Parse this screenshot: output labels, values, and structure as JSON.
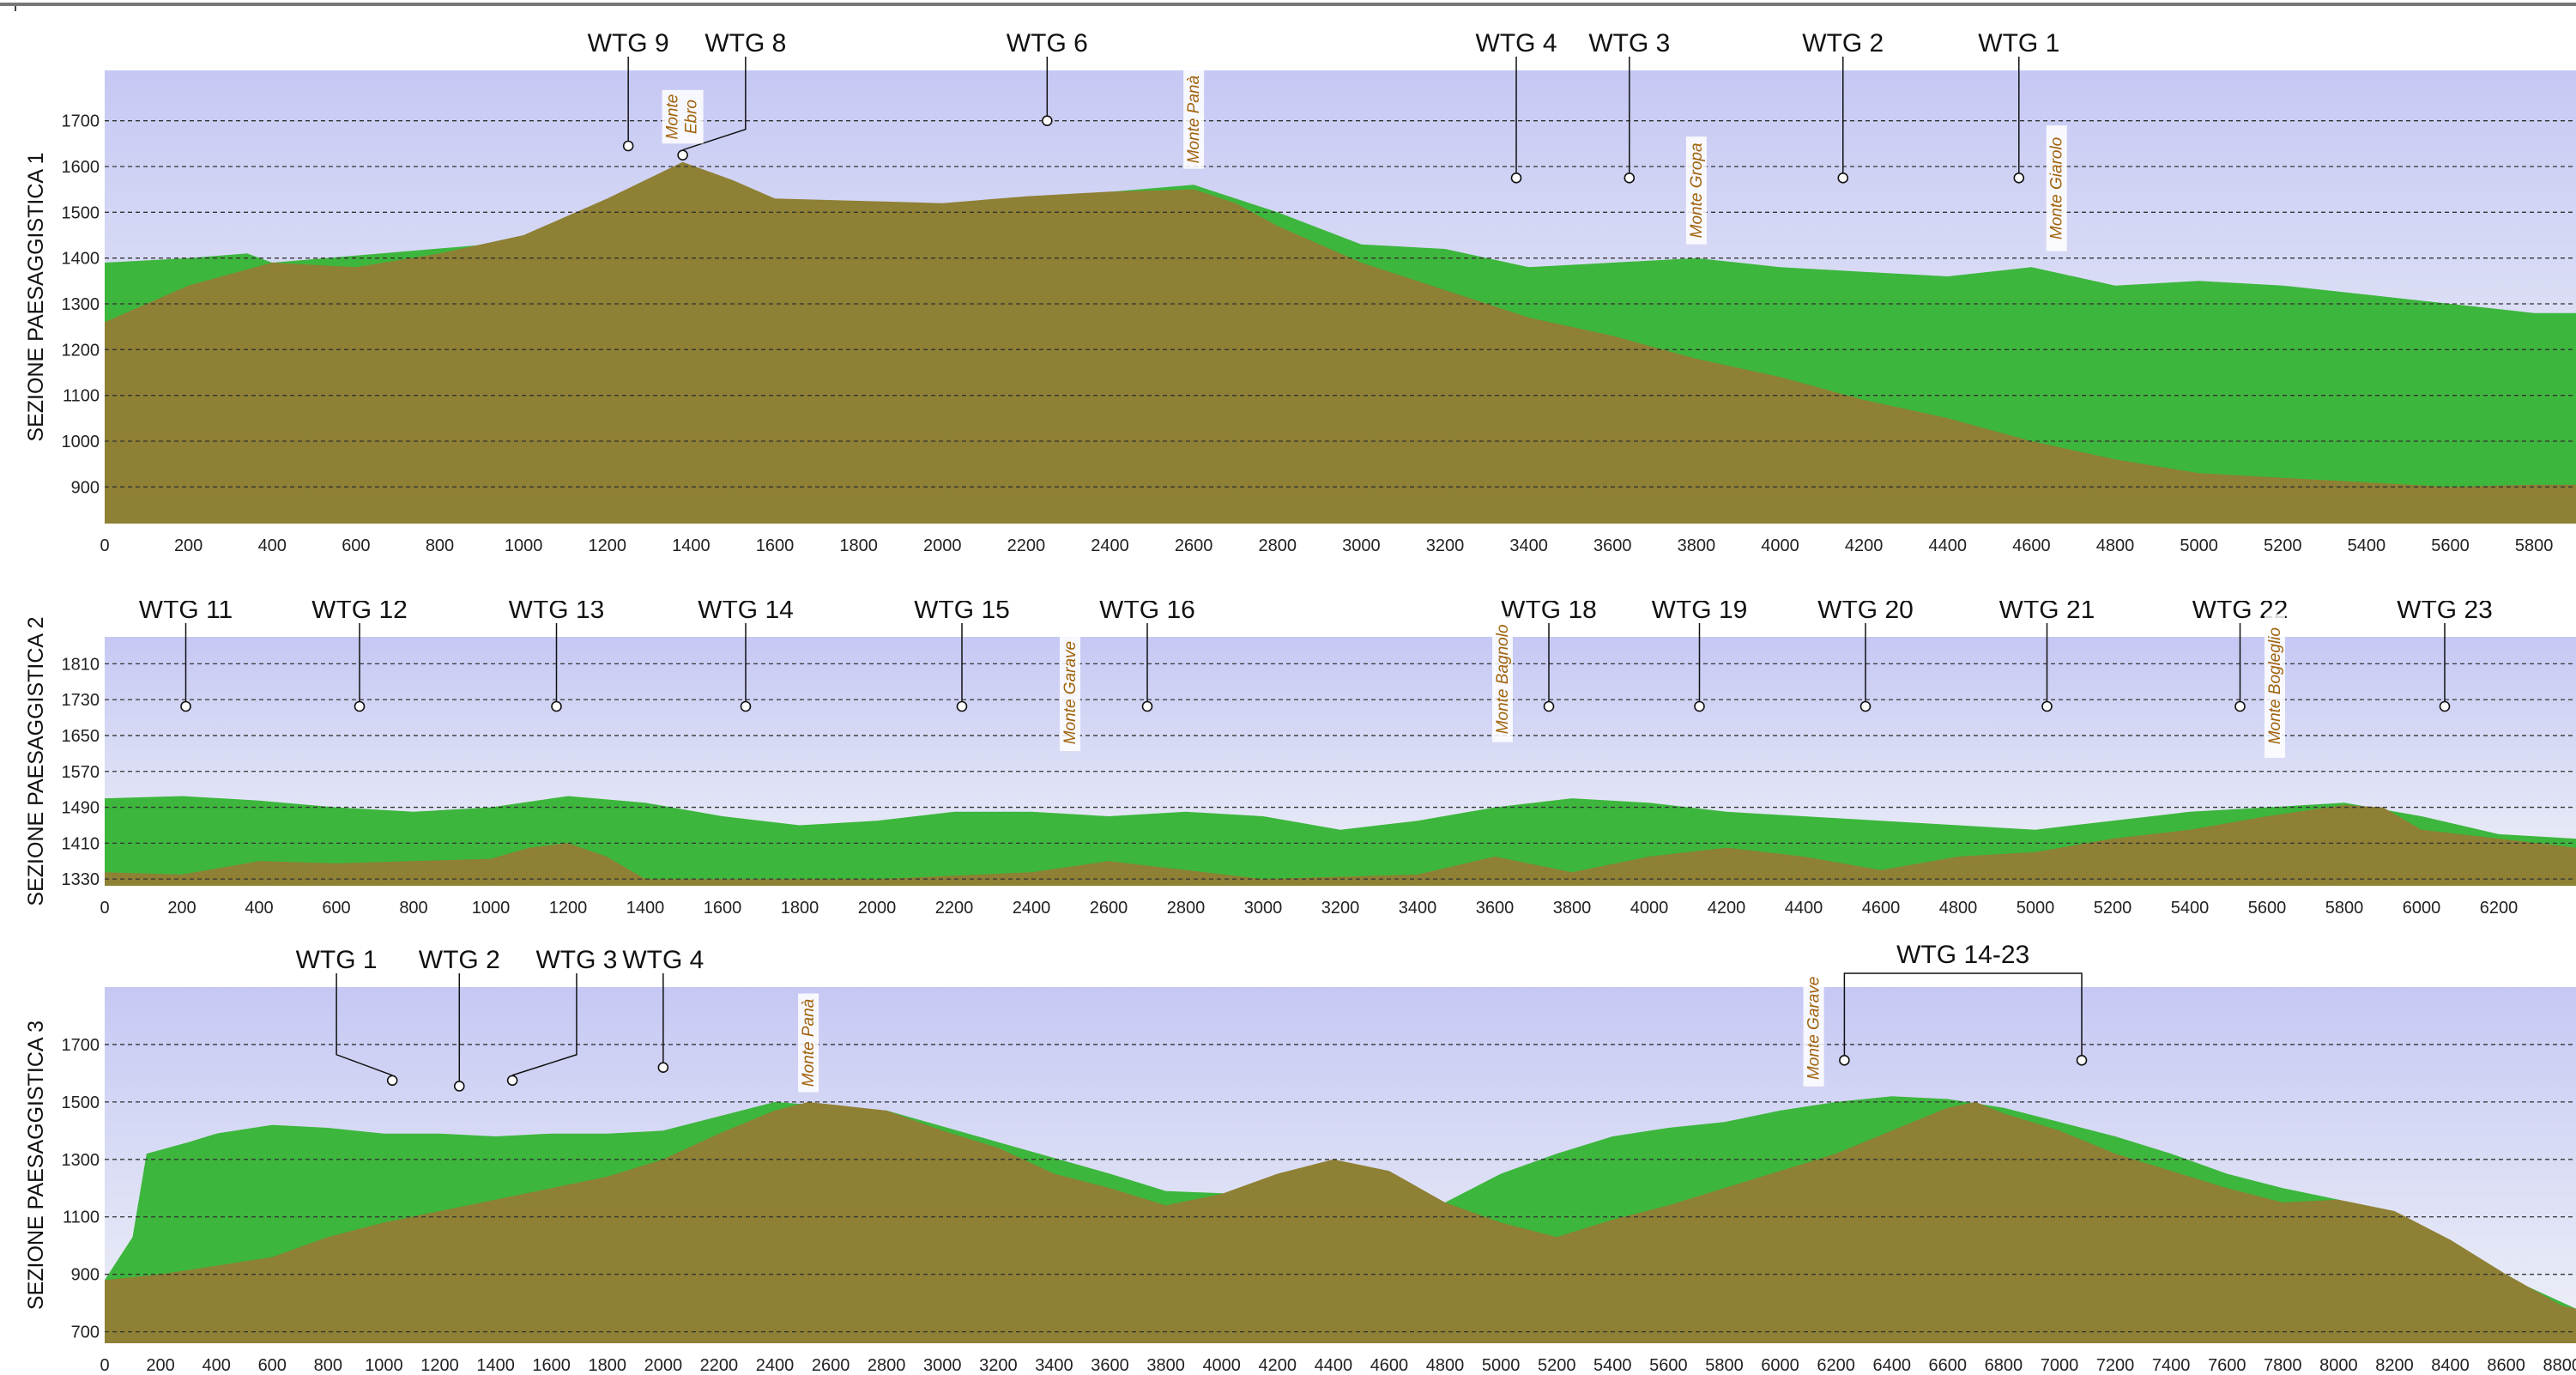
{
  "colors": {
    "ground": "#8e8034",
    "vegetation": "#3db63d",
    "peak_label": "#a0620a",
    "sky_top": "#c6c8f4",
    "sky_bottom": "#eef0f8"
  },
  "panels": [
    {
      "title": "SEZIONE PAESAGGISTICA 1",
      "x_range": [
        0,
        5900
      ],
      "y_range": [
        820,
        1810
      ],
      "x_ticks": [
        0,
        200,
        400,
        600,
        800,
        1000,
        1200,
        1400,
        1600,
        1800,
        2000,
        2200,
        2400,
        2600,
        2800,
        3000,
        3200,
        3400,
        3600,
        3800,
        4000,
        4200,
        4400,
        4600,
        4800,
        5000,
        5200,
        5400,
        5600,
        5800
      ],
      "y_ticks": [
        900,
        1000,
        1100,
        1200,
        1300,
        1400,
        1500,
        1600,
        1700
      ],
      "ground": [
        [
          0,
          1260
        ],
        [
          200,
          1340
        ],
        [
          400,
          1390
        ],
        [
          600,
          1380
        ],
        [
          800,
          1410
        ],
        [
          1000,
          1450
        ],
        [
          1200,
          1530
        ],
        [
          1380,
          1610
        ],
        [
          1500,
          1570
        ],
        [
          1600,
          1530
        ],
        [
          1800,
          1525
        ],
        [
          2000,
          1520
        ],
        [
          2200,
          1535
        ],
        [
          2400,
          1545
        ],
        [
          2600,
          1550
        ],
        [
          2700,
          1520
        ],
        [
          2800,
          1470
        ],
        [
          3000,
          1390
        ],
        [
          3200,
          1330
        ],
        [
          3400,
          1270
        ],
        [
          3600,
          1230
        ],
        [
          3800,
          1180
        ],
        [
          4000,
          1140
        ],
        [
          4200,
          1090
        ],
        [
          4400,
          1050
        ],
        [
          4600,
          1000
        ],
        [
          4800,
          960
        ],
        [
          5000,
          930
        ],
        [
          5200,
          920
        ],
        [
          5400,
          910
        ],
        [
          5600,
          900
        ],
        [
          5800,
          905
        ],
        [
          5900,
          905
        ]
      ],
      "vegetation": [
        [
          0,
          1390
        ],
        [
          200,
          1400
        ],
        [
          340,
          1410
        ],
        [
          400,
          1390
        ],
        [
          2600,
          1560
        ],
        [
          2800,
          1500
        ],
        [
          3000,
          1430
        ],
        [
          3200,
          1420
        ],
        [
          3400,
          1380
        ],
        [
          3600,
          1390
        ],
        [
          3800,
          1400
        ],
        [
          4000,
          1380
        ],
        [
          4200,
          1370
        ],
        [
          4400,
          1360
        ],
        [
          4600,
          1380
        ],
        [
          4800,
          1340
        ],
        [
          5000,
          1350
        ],
        [
          5200,
          1340
        ],
        [
          5400,
          1320
        ],
        [
          5600,
          1300
        ],
        [
          5800,
          1280
        ],
        [
          5900,
          1280
        ]
      ],
      "turbines": [
        {
          "label": "WTG 9",
          "x": 1250,
          "marker_y": 1645,
          "label_x": 1250
        },
        {
          "label": "WTG 8",
          "x": 1380,
          "marker_y": 1625,
          "label_x": 1530
        },
        {
          "label": "WTG 6",
          "x": 2250,
          "marker_y": 1700,
          "label_x": 2250
        },
        {
          "label": "WTG 4",
          "x": 3370,
          "marker_y": 1575,
          "label_x": 3370
        },
        {
          "label": "WTG 3",
          "x": 3640,
          "marker_y": 1575,
          "label_x": 3640
        },
        {
          "label": "WTG 2",
          "x": 4150,
          "marker_y": 1575,
          "label_x": 4150
        },
        {
          "label": "WTG 1",
          "x": 4570,
          "marker_y": 1575,
          "label_x": 4570
        }
      ],
      "peaks": [
        {
          "lines": [
            "Monte",
            "Ebro"
          ],
          "x": 1380,
          "y": 1635
        },
        {
          "lines": [
            "Monte Panà"
          ],
          "x": 2600,
          "y": 1580
        },
        {
          "lines": [
            "Monte Gropa"
          ],
          "x": 3800,
          "y": 1415
        },
        {
          "lines": [
            "Monte Giarolo"
          ],
          "x": 4660,
          "y": 1400
        }
      ]
    },
    {
      "title": "SEZIONE PAESAGGISTICA 2",
      "x_range": [
        0,
        6400
      ],
      "y_range": [
        1315,
        1870
      ],
      "x_ticks": [
        0,
        200,
        400,
        600,
        800,
        1000,
        1200,
        1400,
        1600,
        1800,
        2000,
        2200,
        2400,
        2600,
        2800,
        3000,
        3200,
        3400,
        3600,
        3800,
        4000,
        4200,
        4400,
        4600,
        4800,
        5000,
        5200,
        5400,
        5600,
        5800,
        6000,
        6200,
        6400
      ],
      "y_ticks": [
        1330,
        1410,
        1490,
        1570,
        1650,
        1730,
        1810
      ],
      "ground": [
        [
          0,
          1345
        ],
        [
          200,
          1340
        ],
        [
          400,
          1370
        ],
        [
          600,
          1365
        ],
        [
          800,
          1370
        ],
        [
          1000,
          1375
        ],
        [
          1100,
          1400
        ],
        [
          1200,
          1410
        ],
        [
          1300,
          1380
        ],
        [
          1400,
          1330
        ],
        [
          2000,
          1330
        ],
        [
          2400,
          1345
        ],
        [
          2600,
          1370
        ],
        [
          2800,
          1350
        ],
        [
          3000,
          1330
        ],
        [
          3400,
          1340
        ],
        [
          3600,
          1380
        ],
        [
          3800,
          1345
        ],
        [
          4000,
          1380
        ],
        [
          4200,
          1400
        ],
        [
          4400,
          1380
        ],
        [
          4600,
          1350
        ],
        [
          4800,
          1380
        ],
        [
          5000,
          1390
        ],
        [
          5200,
          1420
        ],
        [
          5400,
          1440
        ],
        [
          5600,
          1470
        ],
        [
          5800,
          1495
        ],
        [
          5900,
          1490
        ],
        [
          6000,
          1440
        ],
        [
          6200,
          1420
        ],
        [
          6400,
          1400
        ]
      ],
      "vegetation": [
        [
          0,
          1510
        ],
        [
          200,
          1515
        ],
        [
          400,
          1505
        ],
        [
          600,
          1490
        ],
        [
          800,
          1480
        ],
        [
          1000,
          1490
        ],
        [
          1200,
          1515
        ],
        [
          1400,
          1500
        ],
        [
          1600,
          1470
        ],
        [
          1800,
          1450
        ],
        [
          2000,
          1460
        ],
        [
          2200,
          1480
        ],
        [
          2400,
          1480
        ],
        [
          2600,
          1470
        ],
        [
          2800,
          1480
        ],
        [
          3000,
          1470
        ],
        [
          3200,
          1440
        ],
        [
          3400,
          1460
        ],
        [
          3600,
          1490
        ],
        [
          3800,
          1510
        ],
        [
          4000,
          1500
        ],
        [
          4200,
          1480
        ],
        [
          4400,
          1470
        ],
        [
          4600,
          1460
        ],
        [
          4800,
          1450
        ],
        [
          5000,
          1440
        ],
        [
          5200,
          1460
        ],
        [
          5400,
          1480
        ],
        [
          5600,
          1490
        ],
        [
          5800,
          1500
        ],
        [
          6000,
          1470
        ],
        [
          6200,
          1430
        ],
        [
          6400,
          1420
        ]
      ],
      "turbines": [
        {
          "label": "WTG 11",
          "x": 210,
          "marker_y": 1715,
          "label_x": 210
        },
        {
          "label": "WTG 12",
          "x": 660,
          "marker_y": 1715,
          "label_x": 660
        },
        {
          "label": "WTG 13",
          "x": 1170,
          "marker_y": 1715,
          "label_x": 1170
        },
        {
          "label": "WTG 14",
          "x": 1660,
          "marker_y": 1715,
          "label_x": 1660
        },
        {
          "label": "WTG 15",
          "x": 2220,
          "marker_y": 1715,
          "label_x": 2220
        },
        {
          "label": "WTG 16",
          "x": 2700,
          "marker_y": 1715,
          "label_x": 2700
        },
        {
          "label": "WTG 18",
          "x": 3740,
          "marker_y": 1715,
          "label_x": 3740
        },
        {
          "label": "WTG 19",
          "x": 4130,
          "marker_y": 1715,
          "label_x": 4130
        },
        {
          "label": "WTG 20",
          "x": 4560,
          "marker_y": 1715,
          "label_x": 4560
        },
        {
          "label": "WTG 21",
          "x": 5030,
          "marker_y": 1715,
          "label_x": 5030
        },
        {
          "label": "WTG 22",
          "x": 5530,
          "marker_y": 1715,
          "label_x": 5530
        },
        {
          "label": "WTG 23",
          "x": 6060,
          "marker_y": 1715,
          "label_x": 6060
        }
      ],
      "peaks": [
        {
          "lines": [
            "Monte Garave"
          ],
          "x": 2500,
          "y": 1600
        },
        {
          "lines": [
            "Monte Bagnolo"
          ],
          "x": 3620,
          "y": 1620
        },
        {
          "lines": [
            "Monte Bogleglio"
          ],
          "x": 5620,
          "y": 1585
        }
      ]
    },
    {
      "title": "SEZIONE PAESAGGISTICA 3",
      "x_range": [
        0,
        8850
      ],
      "y_range": [
        660,
        1900
      ],
      "x_ticks": [
        0,
        200,
        400,
        600,
        800,
        1000,
        1200,
        1400,
        1600,
        1800,
        2000,
        2200,
        2400,
        2600,
        2800,
        3000,
        3200,
        3400,
        3600,
        3800,
        4000,
        4200,
        4400,
        4600,
        4800,
        5000,
        5200,
        5400,
        5600,
        5800,
        6000,
        6200,
        6400,
        6600,
        6800,
        7000,
        7200,
        7400,
        7600,
        7800,
        8000,
        8200,
        8400,
        8600,
        8800
      ],
      "y_ticks": [
        700,
        900,
        1100,
        1300,
        1500,
        1700
      ],
      "ground": [
        [
          0,
          880
        ],
        [
          200,
          900
        ],
        [
          400,
          930
        ],
        [
          600,
          960
        ],
        [
          800,
          1030
        ],
        [
          1000,
          1080
        ],
        [
          1200,
          1120
        ],
        [
          1400,
          1160
        ],
        [
          1600,
          1200
        ],
        [
          1800,
          1240
        ],
        [
          2000,
          1300
        ],
        [
          2200,
          1390
        ],
        [
          2400,
          1470
        ],
        [
          2520,
          1500
        ],
        [
          2800,
          1470
        ],
        [
          3000,
          1400
        ],
        [
          3200,
          1340
        ],
        [
          3400,
          1250
        ],
        [
          3600,
          1200
        ],
        [
          3800,
          1140
        ],
        [
          4000,
          1180
        ],
        [
          4200,
          1250
        ],
        [
          4400,
          1300
        ],
        [
          4600,
          1260
        ],
        [
          4800,
          1150
        ],
        [
          5000,
          1080
        ],
        [
          5200,
          1030
        ],
        [
          5400,
          1090
        ],
        [
          5600,
          1140
        ],
        [
          5800,
          1200
        ],
        [
          6000,
          1260
        ],
        [
          6200,
          1320
        ],
        [
          6400,
          1400
        ],
        [
          6600,
          1480
        ],
        [
          6700,
          1500
        ],
        [
          6800,
          1460
        ],
        [
          7000,
          1400
        ],
        [
          7200,
          1320
        ],
        [
          7400,
          1260
        ],
        [
          7600,
          1200
        ],
        [
          7800,
          1150
        ],
        [
          8000,
          1160
        ],
        [
          8200,
          1120
        ],
        [
          8400,
          1020
        ],
        [
          8600,
          900
        ],
        [
          8800,
          790
        ],
        [
          8850,
          780
        ]
      ],
      "vegetation": [
        [
          0,
          880
        ],
        [
          100,
          1030
        ],
        [
          150,
          1320
        ],
        [
          300,
          1360
        ],
        [
          400,
          1390
        ],
        [
          600,
          1420
        ],
        [
          800,
          1410
        ],
        [
          1000,
          1390
        ],
        [
          1200,
          1390
        ],
        [
          1400,
          1380
        ],
        [
          1600,
          1390
        ],
        [
          1800,
          1390
        ],
        [
          2000,
          1400
        ],
        [
          2400,
          1500
        ],
        [
          2800,
          1470
        ],
        [
          3200,
          1360
        ],
        [
          3600,
          1250
        ],
        [
          3800,
          1190
        ],
        [
          4800,
          1150
        ],
        [
          5000,
          1250
        ],
        [
          5200,
          1320
        ],
        [
          5400,
          1380
        ],
        [
          5600,
          1410
        ],
        [
          5800,
          1430
        ],
        [
          6000,
          1470
        ],
        [
          6200,
          1500
        ],
        [
          6400,
          1520
        ],
        [
          6600,
          1510
        ],
        [
          6800,
          1480
        ],
        [
          7000,
          1430
        ],
        [
          7200,
          1380
        ],
        [
          7400,
          1320
        ],
        [
          7600,
          1250
        ],
        [
          7800,
          1200
        ],
        [
          8000,
          1160
        ],
        [
          8850,
          780
        ]
      ],
      "turbines": [
        {
          "label": "WTG 1",
          "x": 1030,
          "marker_y": 1575,
          "label_x": 830
        },
        {
          "label": "WTG 2",
          "x": 1270,
          "marker_y": 1555,
          "label_x": 1270
        },
        {
          "label": "WTG 3",
          "x": 1460,
          "marker_y": 1575,
          "label_x": 1690
        },
        {
          "label": "WTG 4",
          "x": 2000,
          "marker_y": 1620,
          "label_x": 2000
        }
      ],
      "group": {
        "label": "WTG 14-23",
        "x1": 6230,
        "x2": 7080,
        "marker_y": 1645
      },
      "peaks": [
        {
          "lines": [
            "Monte Panà"
          ],
          "x": 2520,
          "y": 1510
        },
        {
          "lines": [
            "Monte Garave"
          ],
          "x": 6120,
          "y": 1530
        }
      ]
    }
  ]
}
